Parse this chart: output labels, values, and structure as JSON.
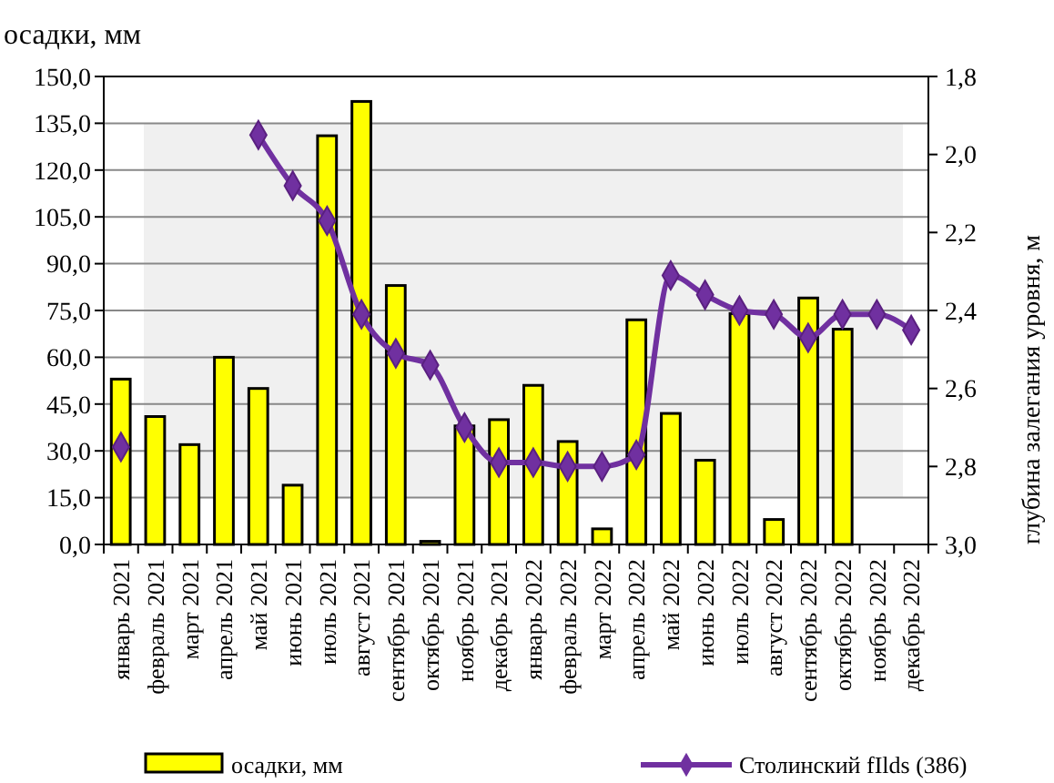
{
  "chart_data": {
    "type": "bar",
    "ylabel": "осадки, мм",
    "y2label": "глубина залегания уровня, м",
    "categories": [
      "январь 2021",
      "февраль 2021",
      "март 2021",
      "апрель 2021",
      "май 2021",
      "июнь 2021",
      "июль 2021",
      "август 2021",
      "сентябрь 2021",
      "октябрь 2021",
      "ноябрь 2021",
      "декабрь 2021",
      "январь 2022",
      "февраль 2022",
      "март 2022",
      "апрель 2022",
      "май 2022",
      "июнь 2022",
      "июль 2022",
      "август 2022",
      "сентябрь 2022",
      "октябрь 2022",
      "ноябрь 2022",
      "декабрь 2022"
    ],
    "series": [
      {
        "name": "осадки, мм",
        "color": "#ffff00",
        "values": [
          53,
          41,
          32,
          60,
          50,
          19,
          131,
          142,
          83,
          1,
          38,
          40,
          51,
          33,
          5,
          72,
          42,
          27,
          74,
          8,
          79,
          69,
          null,
          null
        ]
      },
      {
        "name": "Столинский fIlds (386)",
        "type": "line",
        "axis": "y2",
        "color": "#7030a0",
        "values": [
          2.75,
          null,
          null,
          null,
          1.95,
          2.08,
          2.17,
          2.41,
          2.51,
          2.54,
          2.7,
          2.79,
          2.79,
          2.8,
          2.8,
          2.77,
          2.31,
          2.36,
          2.4,
          2.41,
          2.47,
          2.41,
          2.41,
          2.45
        ]
      }
    ],
    "ylim": [
      0,
      150
    ],
    "yticks": [
      {
        "value": 0,
        "label": "0,0"
      },
      {
        "value": 15,
        "label": "15,0"
      },
      {
        "value": 30,
        "label": "30,0"
      },
      {
        "value": 45,
        "label": "45,0"
      },
      {
        "value": 60,
        "label": "60,0"
      },
      {
        "value": 75,
        "label": "75,0"
      },
      {
        "value": 90,
        "label": "90,0"
      },
      {
        "value": 105,
        "label": "105,0"
      },
      {
        "value": 120,
        "label": "120,0"
      },
      {
        "value": 135,
        "label": "135,0"
      },
      {
        "value": 150,
        "label": "150,0"
      }
    ],
    "y2lim": [
      3.0,
      1.8
    ],
    "y2ticks": [
      {
        "value": 1.8,
        "label": "1,8"
      },
      {
        "value": 2.0,
        "label": "2,0"
      },
      {
        "value": 2.2,
        "label": "2,2"
      },
      {
        "value": 2.4,
        "label": "2,4"
      },
      {
        "value": 2.6,
        "label": "2,6"
      },
      {
        "value": 2.8,
        "label": "2,8"
      },
      {
        "value": 3.0,
        "label": "3,0"
      }
    ],
    "bands": [
      {
        "axis": "y",
        "from": 15,
        "to": 135,
        "color": "#f0f0f0"
      }
    ],
    "grid": "y",
    "legend": "bottom",
    "marker": "diamond",
    "line_style": "solid"
  }
}
